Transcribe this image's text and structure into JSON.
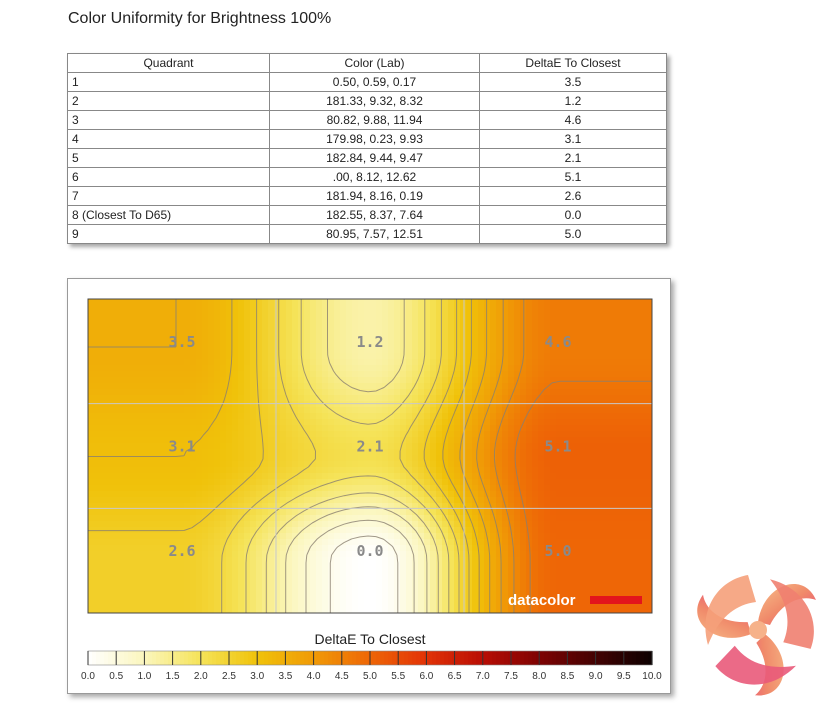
{
  "page": {
    "title": "Color Uniformity for Brightness 100%"
  },
  "table": {
    "headers": [
      "Quadrant",
      "Color (Lab)",
      "DeltaE To Closest"
    ],
    "rows": [
      [
        "1",
        "0.50,  0.59,  0.17",
        "3.5"
      ],
      [
        "2",
        "181.33,  9.32,  8.32",
        "1.2"
      ],
      [
        "3",
        "80.82,  9.88,  11.94",
        "4.6"
      ],
      [
        "4",
        "179.98,  0.23,  9.93",
        "3.1"
      ],
      [
        "5",
        "182.84,  9.44,  9.47",
        "2.1"
      ],
      [
        "6",
        ".00,  8.12,  12.62",
        "5.1"
      ],
      [
        "7",
        "181.94,  8.16,  0.19",
        "2.6"
      ],
      [
        "8 (Closest To D65)",
        "182.55,  8.37,  7.64",
        "0.0"
      ],
      [
        "9",
        "80.95,  7.57,  12.51",
        "5.0"
      ]
    ]
  },
  "chart_data": {
    "type": "heatmap",
    "grid": [
      [
        3.5,
        1.2,
        4.6
      ],
      [
        3.1,
        2.1,
        5.1
      ],
      [
        2.6,
        0.0,
        5.0
      ]
    ],
    "cell_labels": [
      [
        "3.5",
        "1.2",
        "4.6"
      ],
      [
        "3.1",
        "2.1",
        "5.1"
      ],
      [
        "2.6",
        "0.0",
        "5.0"
      ]
    ],
    "colorbar": {
      "title": "DeltaE To Closest",
      "min": 0,
      "max": 10,
      "ticks": [
        "0.0",
        "0.5",
        "1.0",
        "1.5",
        "2.0",
        "2.5",
        "3.0",
        "3.5",
        "4.0",
        "4.5",
        "5.0",
        "5.5",
        "6.0",
        "6.5",
        "7.0",
        "7.5",
        "8.0",
        "8.5",
        "9.0",
        "9.5",
        "10.0"
      ]
    },
    "colors": [
      [
        0,
        "#ffffff"
      ],
      [
        1,
        "#fbf6bd"
      ],
      [
        2,
        "#f5e358"
      ],
      [
        3,
        "#f0c20a"
      ],
      [
        4,
        "#f09a06"
      ],
      [
        5,
        "#ee6606"
      ],
      [
        6,
        "#e23206"
      ],
      [
        7,
        "#b80d04"
      ],
      [
        8,
        "#7e0303"
      ],
      [
        9,
        "#430202"
      ],
      [
        10,
        "#0c0000"
      ]
    ],
    "watermark": "datacolor"
  }
}
